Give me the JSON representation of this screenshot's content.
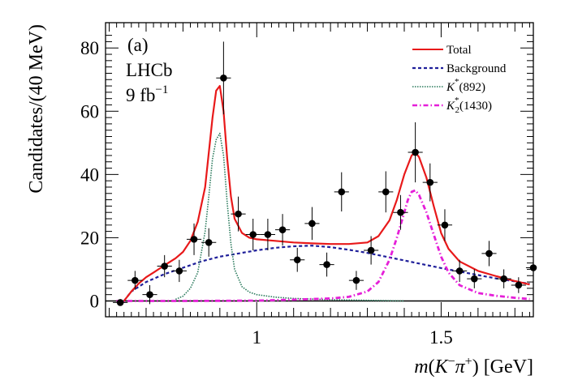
{
  "chart_data": {
    "type": "scatter",
    "panel_label": "(a)",
    "experiment": "LHCb",
    "luminosity_text": "9 fb",
    "luminosity_exp": "−1",
    "xlabel": "m(K⁻π⁺) [GeV]",
    "xlabel_unit": " [GeV]",
    "ylabel": "Candidates/(40 MeV)",
    "xlim": [
      0.59,
      1.75
    ],
    "ylim": [
      -5,
      88
    ],
    "xticks": [
      1,
      1.5
    ],
    "xtick_labels": [
      "1",
      "1.5"
    ],
    "yticks": [
      0,
      20,
      40,
      60,
      80
    ],
    "ytick_labels": [
      "0",
      "20",
      "40",
      "60",
      "80"
    ],
    "data_points": {
      "name": "Data",
      "bin_width": 0.04,
      "x": [
        0.63,
        0.67,
        0.71,
        0.75,
        0.79,
        0.83,
        0.87,
        0.91,
        0.95,
        0.99,
        1.03,
        1.07,
        1.11,
        1.15,
        1.19,
        1.23,
        1.27,
        1.31,
        1.35,
        1.39,
        1.43,
        1.47,
        1.51,
        1.55,
        1.59,
        1.63,
        1.67,
        1.71,
        1.75
      ],
      "y": [
        -0.5,
        6.5,
        2.0,
        11.0,
        9.5,
        19.5,
        18.5,
        70.5,
        27.5,
        21.0,
        21.0,
        22.5,
        13.0,
        24.5,
        11.5,
        34.5,
        6.5,
        16.0,
        34.5,
        28.0,
        47.0,
        37.5,
        24.0,
        9.5,
        7.0,
        15.0,
        7.0,
        5.0,
        10.5
      ],
      "err": [
        1.0,
        3.0,
        3.0,
        3.5,
        3.5,
        5.0,
        4.5,
        11.5,
        5.5,
        5.0,
        5.0,
        5.0,
        3.8,
        5.2,
        3.8,
        6.2,
        3.0,
        4.5,
        6.5,
        5.5,
        9.5,
        6.0,
        5.0,
        3.5,
        3.0,
        4.0,
        3.0,
        2.5,
        3.5
      ]
    },
    "series": [
      {
        "name": "Total",
        "color": "#e8191a",
        "style": "solid",
        "x": [
          0.64,
          0.66,
          0.68,
          0.7,
          0.72,
          0.74,
          0.76,
          0.78,
          0.8,
          0.82,
          0.84,
          0.86,
          0.88,
          0.89,
          0.9,
          0.91,
          0.92,
          0.93,
          0.94,
          0.96,
          0.98,
          1.0,
          1.05,
          1.1,
          1.15,
          1.2,
          1.25,
          1.3,
          1.33,
          1.36,
          1.38,
          1.4,
          1.42,
          1.43,
          1.44,
          1.46,
          1.48,
          1.5,
          1.52,
          1.55,
          1.6,
          1.65,
          1.7,
          1.74
        ],
        "y": [
          0.0,
          3.0,
          5.5,
          7.5,
          9.0,
          10.5,
          12.0,
          13.5,
          15.5,
          19.0,
          25.0,
          36.0,
          58.0,
          66.5,
          68.0,
          60.0,
          45.0,
          33.0,
          26.0,
          21.5,
          20.0,
          19.5,
          19.0,
          18.5,
          18.2,
          18.0,
          18.0,
          18.5,
          20.5,
          25.5,
          32.0,
          40.0,
          46.0,
          47.0,
          45.5,
          39.0,
          30.0,
          21.5,
          16.5,
          12.5,
          9.5,
          7.8,
          6.3,
          5.2
        ]
      },
      {
        "name": "Background",
        "color": "#1f1f9a",
        "style": "dashed",
        "x": [
          0.64,
          0.66,
          0.7,
          0.75,
          0.8,
          0.85,
          0.9,
          0.95,
          1.0,
          1.05,
          1.1,
          1.15,
          1.2,
          1.25,
          1.3,
          1.35,
          1.4,
          1.45,
          1.5,
          1.55,
          1.6,
          1.65,
          1.7,
          1.74
        ],
        "y": [
          0.0,
          3.0,
          6.0,
          8.5,
          10.5,
          12.5,
          14.0,
          15.0,
          16.0,
          16.8,
          17.3,
          17.5,
          17.0,
          16.2,
          15.2,
          14.0,
          12.8,
          11.6,
          10.4,
          9.3,
          8.2,
          7.1,
          6.2,
          5.4
        ]
      },
      {
        "name": "K*(892)",
        "color": "#2a7a5c",
        "style": "dotted",
        "x": [
          0.78,
          0.8,
          0.82,
          0.84,
          0.86,
          0.87,
          0.88,
          0.89,
          0.9,
          0.91,
          0.92,
          0.93,
          0.94,
          0.96,
          0.98,
          1.0,
          1.05,
          1.1,
          1.2,
          1.3,
          1.4
        ],
        "y": [
          0.5,
          1.5,
          4.0,
          9.0,
          22.0,
          33.0,
          45.0,
          51.0,
          53.0,
          46.0,
          31.0,
          18.0,
          10.0,
          4.5,
          2.8,
          2.0,
          1.2,
          0.8,
          0.4,
          0.2,
          0.0
        ]
      },
      {
        "name": "K2*(1430)",
        "color": "#e51fd8",
        "style": "dashdot",
        "x": [
          0.62,
          0.8,
          1.0,
          1.1,
          1.2,
          1.25,
          1.3,
          1.33,
          1.36,
          1.38,
          1.4,
          1.41,
          1.42,
          1.43,
          1.44,
          1.46,
          1.48,
          1.5,
          1.52,
          1.55,
          1.6,
          1.65,
          1.7,
          1.74
        ],
        "y": [
          0.0,
          0.0,
          0.1,
          0.4,
          0.8,
          1.3,
          3.0,
          6.0,
          13.0,
          20.0,
          28.0,
          32.0,
          34.5,
          35.0,
          33.5,
          28.0,
          21.0,
          14.0,
          9.0,
          5.0,
          2.5,
          1.6,
          1.0,
          0.6
        ]
      }
    ],
    "legend": [
      {
        "label": "Total",
        "color": "#e8191a",
        "style": "solid"
      },
      {
        "label": "Background",
        "color": "#1f1f9a",
        "style": "dashed"
      },
      {
        "label": "K*(892)",
        "color": "#2a7a5c",
        "style": "dotted"
      },
      {
        "label": "K2*(1430)",
        "color": "#e51fd8",
        "style": "dashdot"
      }
    ],
    "legend_position": "top-right",
    "zero_line": true,
    "grid": false
  }
}
